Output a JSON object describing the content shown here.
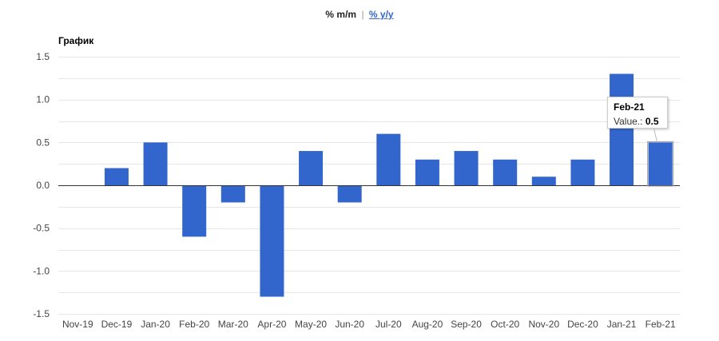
{
  "toggle": {
    "mm_label": "% m/m",
    "separator": "|",
    "yy_label": "% y/y"
  },
  "tooltip": {
    "title": "Feb-21",
    "value_label": "Value.:",
    "value": "0.5"
  },
  "colors": {
    "bar": "#3366cc",
    "grid": "#e6e6e6",
    "zero_line": "#333333"
  },
  "chart_data": {
    "type": "bar",
    "title": "График",
    "categories": [
      "Nov-19",
      "Dec-19",
      "Jan-20",
      "Feb-20",
      "Mar-20",
      "Apr-20",
      "May-20",
      "Jun-20",
      "Jul-20",
      "Aug-20",
      "Sep-20",
      "Oct-20",
      "Nov-20",
      "Dec-20",
      "Jan-21",
      "Feb-21"
    ],
    "values": [
      0.0,
      0.2,
      0.5,
      -0.6,
      -0.2,
      -1.3,
      0.4,
      -0.2,
      0.6,
      0.3,
      0.4,
      0.3,
      0.1,
      0.3,
      1.3,
      0.5
    ],
    "yticks": [
      "1.5",
      "1.0",
      "0.5",
      "0.0",
      "-0.5",
      "-1.0",
      "-1.5"
    ],
    "ylim": [
      -1.5,
      1.5
    ],
    "grid": true,
    "highlighted_category": "Feb-21"
  }
}
